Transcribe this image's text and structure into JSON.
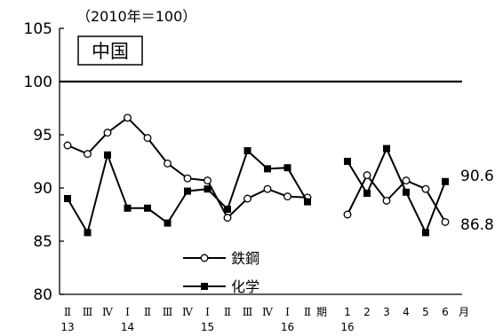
{
  "chart_data": {
    "type": "line",
    "note": "（2010年＝100）",
    "title": "中国",
    "ylim": [
      80,
      105
    ],
    "yticks": [
      80,
      85,
      90,
      95,
      100,
      105
    ],
    "reference_line": 100,
    "quarter_labels": [
      "Ⅱ",
      "Ⅲ",
      "Ⅳ",
      "Ⅰ",
      "Ⅱ",
      "Ⅲ",
      "Ⅳ",
      "Ⅰ",
      "Ⅱ",
      "Ⅲ",
      "Ⅳ",
      "Ⅰ",
      "Ⅱ"
    ],
    "quarter_unit": "期",
    "year_labels": [
      {
        "label": "13",
        "index": 0
      },
      {
        "label": "14",
        "index": 3
      },
      {
        "label": "15",
        "index": 7
      },
      {
        "label": "16",
        "index": 11
      }
    ],
    "month_labels": [
      "1",
      "2",
      "3",
      "4",
      "5",
      "6"
    ],
    "month_unit": "月",
    "month_year_label": "16",
    "series": [
      {
        "name": "鉄鋼",
        "marker": "open-circle",
        "quarterly": [
          94.0,
          93.2,
          95.2,
          96.6,
          94.7,
          92.3,
          90.9,
          90.7,
          87.2,
          89.0,
          89.9,
          89.2,
          89.1
        ],
        "monthly": [
          87.5,
          91.2,
          88.8,
          90.7,
          89.9,
          86.8
        ],
        "end_label": "86.8"
      },
      {
        "name": "化学",
        "marker": "filled-square",
        "quarterly": [
          89.0,
          85.8,
          93.1,
          88.1,
          88.1,
          86.7,
          89.7,
          89.9,
          88.0,
          93.5,
          91.8,
          91.9,
          88.7
        ],
        "monthly": [
          92.5,
          89.5,
          93.7,
          89.6,
          85.8,
          90.6
        ],
        "end_label": "90.6"
      }
    ]
  }
}
